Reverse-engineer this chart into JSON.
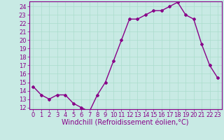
{
  "x": [
    0,
    1,
    2,
    3,
    4,
    5,
    6,
    7,
    8,
    9,
    10,
    11,
    12,
    13,
    14,
    15,
    16,
    17,
    18,
    19,
    20,
    21,
    22,
    23
  ],
  "y": [
    14.5,
    13.5,
    13.0,
    13.5,
    13.5,
    12.5,
    12.0,
    11.5,
    13.5,
    15.0,
    17.5,
    20.0,
    22.5,
    22.5,
    23.0,
    23.5,
    23.5,
    24.0,
    24.5,
    23.0,
    22.5,
    19.5,
    17.0,
    15.5
  ],
  "color": "#880088",
  "bg_color": "#c8eae4",
  "grid_color": "#aaddcc",
  "xlabel": "Windchill (Refroidissement éolien,°C)",
  "ylim": [
    11.8,
    24.6
  ],
  "xlim": [
    -0.5,
    23.5
  ],
  "yticks": [
    12,
    13,
    14,
    15,
    16,
    17,
    18,
    19,
    20,
    21,
    22,
    23,
    24
  ],
  "xticks": [
    0,
    1,
    2,
    3,
    4,
    5,
    6,
    7,
    8,
    9,
    10,
    11,
    12,
    13,
    14,
    15,
    16,
    17,
    18,
    19,
    20,
    21,
    22,
    23
  ],
  "marker": "D",
  "linewidth": 1.0,
  "markersize": 2,
  "tick_fontsize": 6,
  "xlabel_fontsize": 7
}
